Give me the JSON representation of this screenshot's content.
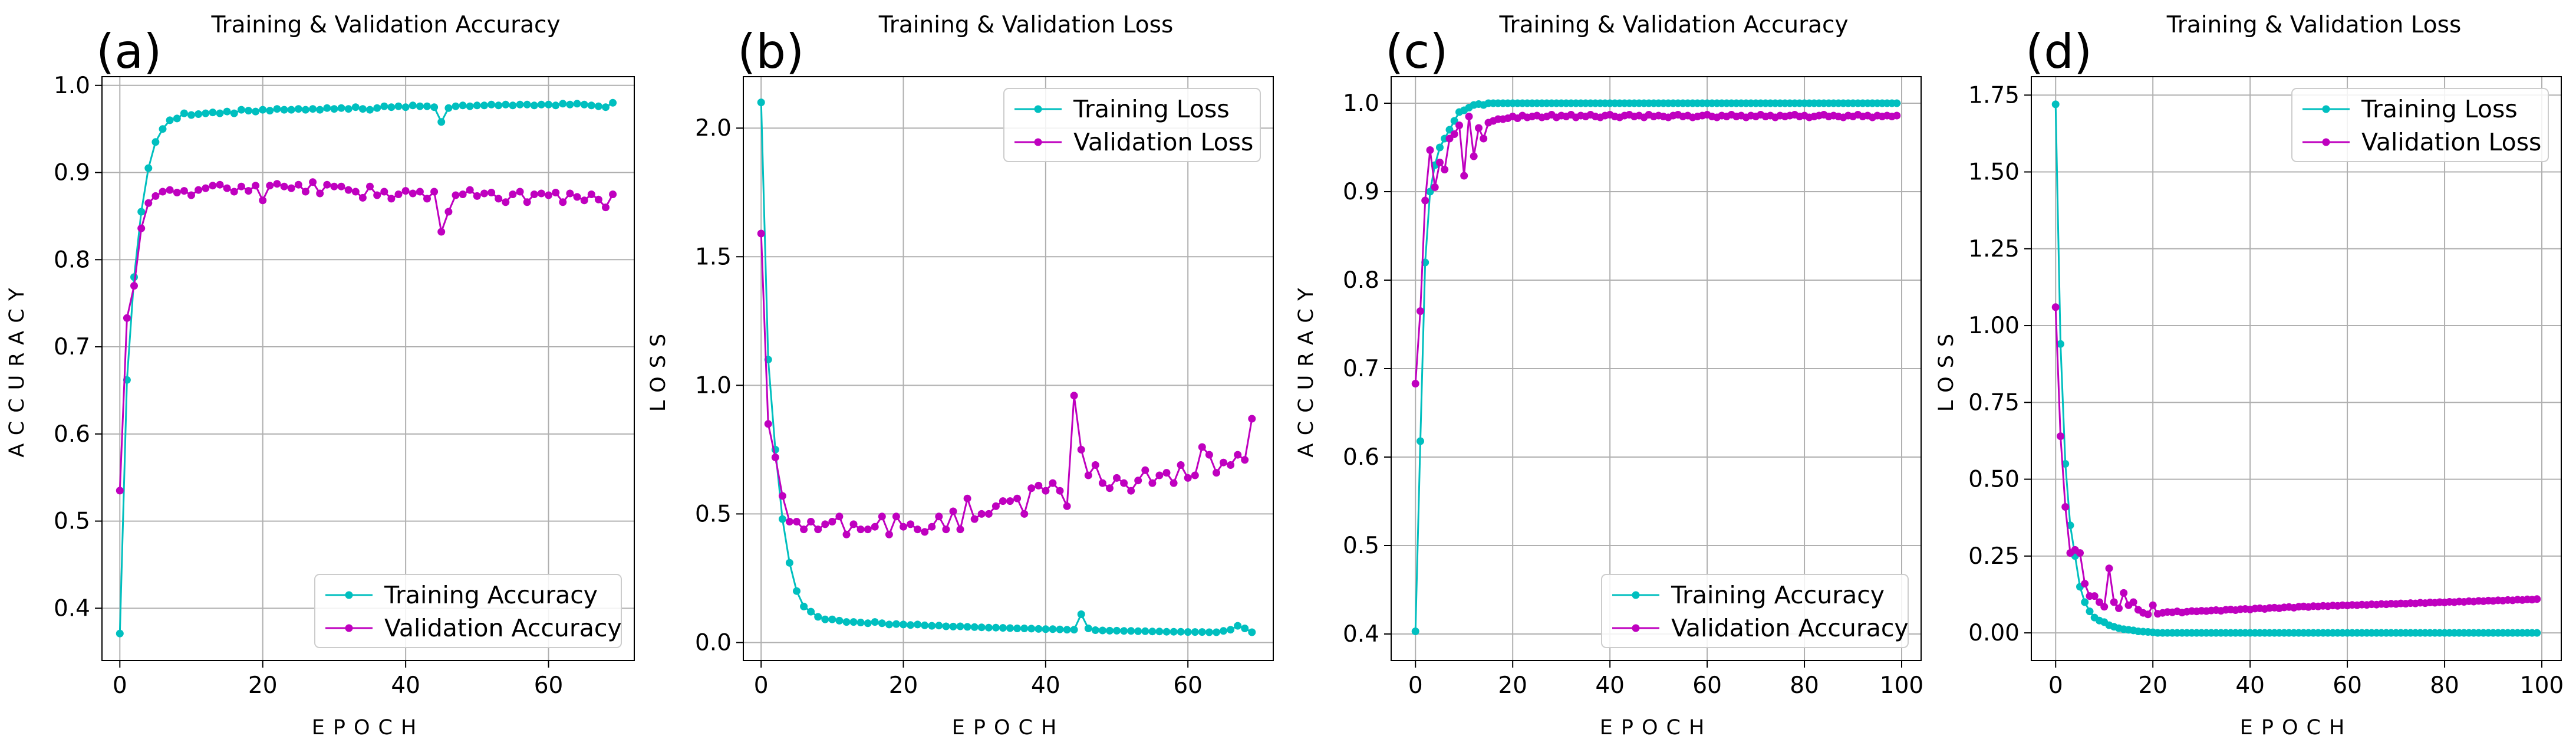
{
  "colors": {
    "training": "#00bfbf",
    "validation": "#bf00bf"
  },
  "chart_data": [
    {
      "type": "line",
      "panel_label": "(a)",
      "title": "Training & Validation Accuracy",
      "xlabel": "EPOCH",
      "ylabel": "ACCURACY",
      "xlim": [
        -2.5,
        72
      ],
      "ylim": [
        0.34,
        1.01
      ],
      "xticks": [
        0,
        20,
        40,
        60
      ],
      "yticks": [
        0.4,
        0.5,
        0.6,
        0.7,
        0.8,
        0.9,
        1.0
      ],
      "ytick_decimals": 1,
      "grid": true,
      "legend_position": "lower-right",
      "series": [
        {
          "name": "Training Accuracy",
          "color": "#00bfbf",
          "values": [
            0.371,
            0.662,
            0.78,
            0.855,
            0.905,
            0.935,
            0.95,
            0.96,
            0.962,
            0.968,
            0.966,
            0.967,
            0.968,
            0.969,
            0.968,
            0.97,
            0.968,
            0.972,
            0.971,
            0.97,
            0.972,
            0.971,
            0.973,
            0.972,
            0.972,
            0.973,
            0.972,
            0.973,
            0.972,
            0.974,
            0.973,
            0.974,
            0.973,
            0.975,
            0.973,
            0.972,
            0.974,
            0.976,
            0.975,
            0.976,
            0.975,
            0.977,
            0.976,
            0.976,
            0.975,
            0.958,
            0.974,
            0.976,
            0.977,
            0.976,
            0.977,
            0.977,
            0.978,
            0.977,
            0.978,
            0.977,
            0.978,
            0.978,
            0.977,
            0.978,
            0.978,
            0.977,
            0.979,
            0.978,
            0.979,
            0.978,
            0.977,
            0.976,
            0.975,
            0.98
          ]
        },
        {
          "name": "Validation Accuracy",
          "color": "#bf00bf",
          "values": [
            0.535,
            0.733,
            0.77,
            0.836,
            0.865,
            0.873,
            0.878,
            0.88,
            0.877,
            0.879,
            0.874,
            0.88,
            0.882,
            0.885,
            0.886,
            0.882,
            0.878,
            0.884,
            0.879,
            0.885,
            0.868,
            0.885,
            0.887,
            0.884,
            0.882,
            0.886,
            0.878,
            0.889,
            0.876,
            0.886,
            0.884,
            0.884,
            0.88,
            0.878,
            0.871,
            0.884,
            0.874,
            0.878,
            0.87,
            0.875,
            0.879,
            0.876,
            0.878,
            0.87,
            0.878,
            0.832,
            0.855,
            0.874,
            0.875,
            0.88,
            0.873,
            0.876,
            0.877,
            0.87,
            0.866,
            0.875,
            0.878,
            0.866,
            0.875,
            0.876,
            0.874,
            0.877,
            0.866,
            0.876,
            0.872,
            0.868,
            0.875,
            0.869,
            0.86,
            0.875
          ]
        }
      ]
    },
    {
      "type": "line",
      "panel_label": "(b)",
      "title": "Training & Validation Loss",
      "xlabel": "EPOCH",
      "ylabel": "LOSS",
      "xlim": [
        -2.5,
        72
      ],
      "ylim": [
        -0.07,
        2.2
      ],
      "xticks": [
        0,
        20,
        40,
        60
      ],
      "yticks": [
        0.0,
        0.5,
        1.0,
        1.5,
        2.0
      ],
      "ytick_decimals": 1,
      "grid": true,
      "legend_position": "upper-right",
      "series": [
        {
          "name": "Training Loss",
          "color": "#00bfbf",
          "values": [
            2.1,
            1.1,
            0.75,
            0.48,
            0.31,
            0.2,
            0.14,
            0.12,
            0.1,
            0.09,
            0.09,
            0.085,
            0.08,
            0.08,
            0.078,
            0.075,
            0.08,
            0.075,
            0.07,
            0.072,
            0.07,
            0.068,
            0.07,
            0.067,
            0.065,
            0.066,
            0.063,
            0.062,
            0.063,
            0.061,
            0.06,
            0.059,
            0.058,
            0.058,
            0.057,
            0.056,
            0.055,
            0.055,
            0.054,
            0.053,
            0.052,
            0.052,
            0.051,
            0.05,
            0.05,
            0.11,
            0.055,
            0.048,
            0.047,
            0.046,
            0.046,
            0.045,
            0.045,
            0.044,
            0.044,
            0.043,
            0.043,
            0.042,
            0.042,
            0.042,
            0.041,
            0.041,
            0.041,
            0.04,
            0.04,
            0.045,
            0.05,
            0.065,
            0.055,
            0.04
          ]
        },
        {
          "name": "Validation Loss",
          "color": "#bf00bf",
          "values": [
            1.59,
            0.85,
            0.72,
            0.57,
            0.47,
            0.47,
            0.44,
            0.47,
            0.44,
            0.46,
            0.47,
            0.49,
            0.42,
            0.46,
            0.44,
            0.44,
            0.45,
            0.49,
            0.42,
            0.49,
            0.45,
            0.46,
            0.44,
            0.43,
            0.45,
            0.49,
            0.44,
            0.51,
            0.44,
            0.56,
            0.48,
            0.5,
            0.5,
            0.53,
            0.55,
            0.55,
            0.56,
            0.5,
            0.6,
            0.61,
            0.59,
            0.62,
            0.59,
            0.53,
            0.96,
            0.75,
            0.65,
            0.69,
            0.62,
            0.6,
            0.64,
            0.62,
            0.59,
            0.63,
            0.67,
            0.62,
            0.65,
            0.66,
            0.62,
            0.69,
            0.64,
            0.65,
            0.76,
            0.73,
            0.66,
            0.7,
            0.69,
            0.73,
            0.71,
            0.87
          ]
        }
      ]
    },
    {
      "type": "line",
      "panel_label": "(c)",
      "title": "Training & Validation Accuracy",
      "xlabel": "EPOCH",
      "ylabel": "ACCURACY",
      "xlim": [
        -5,
        104
      ],
      "ylim": [
        0.37,
        1.03
      ],
      "xticks": [
        0,
        20,
        40,
        60,
        80,
        100
      ],
      "yticks": [
        0.4,
        0.5,
        0.6,
        0.7,
        0.8,
        0.9,
        1.0
      ],
      "ytick_decimals": 1,
      "grid": true,
      "legend_position": "lower-right",
      "series": [
        {
          "name": "Training Accuracy",
          "color": "#00bfbf",
          "values": [
            0.403,
            0.618,
            0.82,
            0.9,
            0.93,
            0.95,
            0.96,
            0.97,
            0.98,
            0.99,
            0.992,
            0.995,
            0.998,
            0.999,
            0.998,
            1.0,
            1.0,
            1.0,
            1.0,
            1.0,
            1.0,
            1.0,
            1.0,
            1.0,
            1.0,
            1.0,
            1.0,
            1.0,
            1.0,
            1.0,
            1.0,
            1.0,
            1.0,
            1.0,
            1.0,
            1.0,
            1.0,
            1.0,
            1.0,
            1.0,
            1.0,
            1.0,
            1.0,
            1.0,
            1.0,
            1.0,
            1.0,
            1.0,
            1.0,
            1.0,
            1.0,
            1.0,
            1.0,
            1.0,
            1.0,
            1.0,
            1.0,
            1.0,
            1.0,
            1.0,
            1.0,
            1.0,
            1.0,
            1.0,
            1.0,
            1.0,
            1.0,
            1.0,
            1.0,
            1.0,
            1.0,
            1.0,
            1.0,
            1.0,
            1.0,
            1.0,
            1.0,
            1.0,
            1.0,
            1.0,
            1.0,
            1.0,
            1.0,
            1.0,
            1.0,
            1.0,
            1.0,
            1.0,
            1.0,
            1.0,
            1.0,
            1.0,
            1.0,
            1.0,
            1.0,
            1.0,
            1.0,
            1.0,
            1.0,
            1.0
          ]
        },
        {
          "name": "Validation Accuracy",
          "color": "#bf00bf",
          "values": [
            0.683,
            0.765,
            0.89,
            0.947,
            0.905,
            0.933,
            0.925,
            0.96,
            0.965,
            0.975,
            0.918,
            0.985,
            0.94,
            0.972,
            0.96,
            0.978,
            0.98,
            0.982,
            0.982,
            0.983,
            0.985,
            0.983,
            0.986,
            0.984,
            0.985,
            0.986,
            0.984,
            0.985,
            0.987,
            0.984,
            0.986,
            0.985,
            0.987,
            0.984,
            0.986,
            0.985,
            0.987,
            0.985,
            0.984,
            0.986,
            0.987,
            0.985,
            0.984,
            0.986,
            0.987,
            0.985,
            0.986,
            0.984,
            0.987,
            0.985,
            0.986,
            0.985,
            0.984,
            0.986,
            0.987,
            0.985,
            0.986,
            0.984,
            0.985,
            0.986,
            0.987,
            0.985,
            0.984,
            0.986,
            0.985,
            0.987,
            0.985,
            0.986,
            0.984,
            0.986,
            0.985,
            0.987,
            0.985,
            0.986,
            0.984,
            0.986,
            0.985,
            0.986,
            0.987,
            0.985,
            0.986,
            0.984,
            0.985,
            0.986,
            0.987,
            0.985,
            0.986,
            0.985,
            0.984,
            0.986,
            0.985,
            0.987,
            0.985,
            0.986,
            0.984,
            0.986,
            0.985,
            0.986,
            0.985,
            0.986
          ]
        }
      ]
    },
    {
      "type": "line",
      "panel_label": "(d)",
      "title": "Training & Validation Loss",
      "xlabel": "EPOCH",
      "ylabel": "LOSS",
      "xlim": [
        -5,
        104
      ],
      "ylim": [
        -0.09,
        1.81
      ],
      "xticks": [
        0,
        20,
        40,
        60,
        80,
        100
      ],
      "yticks": [
        0.0,
        0.25,
        0.5,
        0.75,
        1.0,
        1.25,
        1.5,
        1.75
      ],
      "ytick_decimals": 2,
      "grid": true,
      "legend_position": "upper-right",
      "series": [
        {
          "name": "Training Loss",
          "color": "#00bfbf",
          "values": [
            1.72,
            0.94,
            0.55,
            0.35,
            0.25,
            0.15,
            0.1,
            0.07,
            0.05,
            0.04,
            0.035,
            0.025,
            0.02,
            0.015,
            0.012,
            0.01,
            0.008,
            0.005,
            0.004,
            0.003,
            0.002,
            0.0,
            0.0,
            0.0,
            0.0,
            0.0,
            0.0,
            0.0,
            0.0,
            0.0,
            0.0,
            0.0,
            0.0,
            0.0,
            0.0,
            0.0,
            0.0,
            0.0,
            0.0,
            0.0,
            0.0,
            0.0,
            0.0,
            0.0,
            0.0,
            0.0,
            0.0,
            0.0,
            0.0,
            0.0,
            0.0,
            0.0,
            0.0,
            0.0,
            0.0,
            0.0,
            0.0,
            0.0,
            0.0,
            0.0,
            0.0,
            0.0,
            0.0,
            0.0,
            0.0,
            0.0,
            0.0,
            0.0,
            0.0,
            0.0,
            0.0,
            0.0,
            0.0,
            0.0,
            0.0,
            0.0,
            0.0,
            0.0,
            0.0,
            0.0,
            0.0,
            0.0,
            0.0,
            0.0,
            0.0,
            0.0,
            0.0,
            0.0,
            0.0,
            0.0,
            0.0,
            0.0,
            0.0,
            0.0,
            0.0,
            0.0,
            0.0,
            0.0,
            0.0,
            0.0
          ]
        },
        {
          "name": "Validation Loss",
          "color": "#bf00bf",
          "values": [
            1.06,
            0.64,
            0.41,
            0.26,
            0.27,
            0.26,
            0.16,
            0.12,
            0.12,
            0.1,
            0.085,
            0.21,
            0.1,
            0.08,
            0.13,
            0.09,
            0.1,
            0.075,
            0.065,
            0.06,
            0.09,
            0.062,
            0.065,
            0.068,
            0.067,
            0.07,
            0.066,
            0.069,
            0.071,
            0.07,
            0.072,
            0.071,
            0.073,
            0.074,
            0.072,
            0.075,
            0.076,
            0.074,
            0.077,
            0.078,
            0.076,
            0.079,
            0.08,
            0.078,
            0.081,
            0.082,
            0.08,
            0.083,
            0.084,
            0.082,
            0.085,
            0.086,
            0.084,
            0.087,
            0.086,
            0.088,
            0.087,
            0.089,
            0.088,
            0.09,
            0.089,
            0.091,
            0.09,
            0.092,
            0.091,
            0.093,
            0.092,
            0.094,
            0.093,
            0.095,
            0.094,
            0.096,
            0.095,
            0.097,
            0.096,
            0.098,
            0.097,
            0.099,
            0.098,
            0.1,
            0.099,
            0.101,
            0.1,
            0.102,
            0.101,
            0.103,
            0.102,
            0.104,
            0.103,
            0.105,
            0.104,
            0.106,
            0.105,
            0.107,
            0.106,
            0.108,
            0.107,
            0.109,
            0.108,
            0.11
          ]
        }
      ]
    }
  ]
}
